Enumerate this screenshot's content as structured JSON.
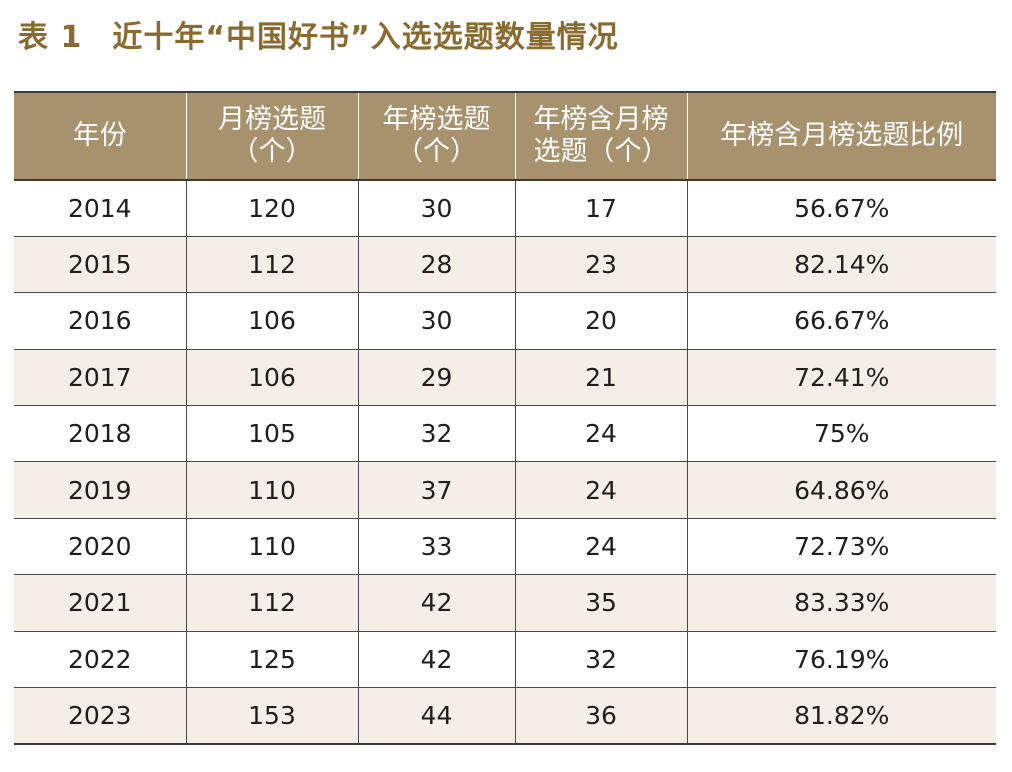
{
  "title": {
    "number": "表 1",
    "text": "近十年“中国好书”入选选题数量情况"
  },
  "table": {
    "headers": [
      {
        "line1": "年份",
        "line2": ""
      },
      {
        "line1": "月榜选题",
        "line2": "（个）"
      },
      {
        "line1": "年榜选题",
        "line2": "（个）"
      },
      {
        "line1": "年榜含月榜",
        "line2": "选题（个）"
      },
      {
        "line1": "年榜含月榜选题比例",
        "line2": ""
      }
    ],
    "rows": [
      [
        "2014",
        "120",
        "30",
        "17",
        "56.67%"
      ],
      [
        "2015",
        "112",
        "28",
        "23",
        "82.14%"
      ],
      [
        "2016",
        "106",
        "30",
        "20",
        "66.67%"
      ],
      [
        "2017",
        "106",
        "29",
        "21",
        "72.41%"
      ],
      [
        "2018",
        "105",
        "32",
        "24",
        "75%"
      ],
      [
        "2019",
        "110",
        "37",
        "24",
        "64.86%"
      ],
      [
        "2020",
        "110",
        "33",
        "24",
        "72.73%"
      ],
      [
        "2021",
        "112",
        "42",
        "35",
        "83.33%"
      ],
      [
        "2022",
        "125",
        "42",
        "32",
        "76.19%"
      ],
      [
        "2023",
        "153",
        "44",
        "36",
        "81.82%"
      ]
    ]
  }
}
